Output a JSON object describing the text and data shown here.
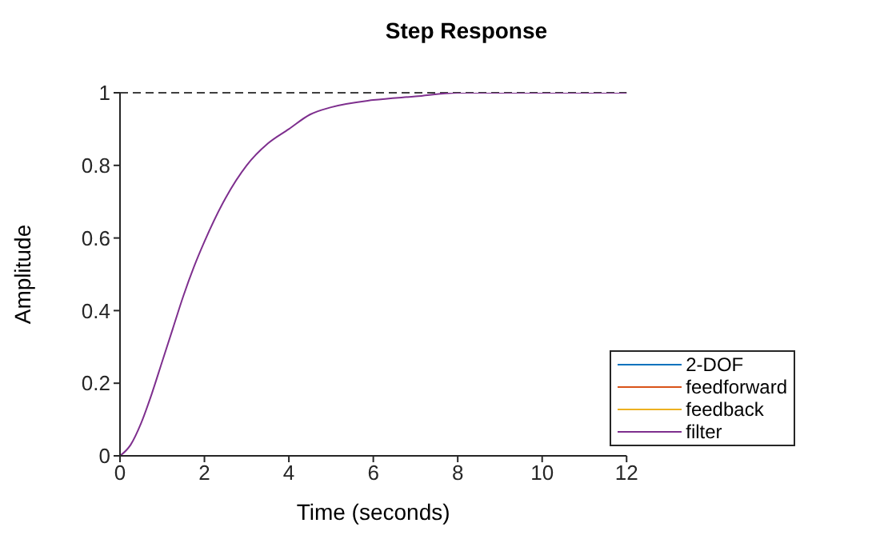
{
  "chart_data": {
    "type": "line",
    "title": "Step Response",
    "xlabel": "Time (seconds)",
    "ylabel": "Amplitude",
    "x": [
      0,
      0.25,
      0.5,
      0.75,
      1,
      1.25,
      1.5,
      1.75,
      2,
      2.5,
      3,
      3.5,
      4,
      4.5,
      5,
      6,
      7,
      8,
      9,
      10,
      12
    ],
    "series": [
      {
        "name": "2-DOF",
        "color": "#0072bd",
        "values": [
          null,
          null,
          null,
          null,
          null,
          null,
          null,
          null,
          null,
          null,
          null,
          null,
          null,
          null,
          null,
          null,
          null,
          null,
          null,
          null,
          null
        ]
      },
      {
        "name": "feedforward",
        "color": "#d95319",
        "values": [
          null,
          null,
          null,
          null,
          null,
          null,
          null,
          null,
          null,
          null,
          null,
          null,
          null,
          null,
          null,
          null,
          null,
          null,
          null,
          null,
          null
        ]
      },
      {
        "name": "feedback",
        "color": "#edb120",
        "values": [
          null,
          null,
          null,
          null,
          null,
          null,
          null,
          null,
          null,
          null,
          null,
          null,
          null,
          null,
          null,
          null,
          null,
          null,
          null,
          null,
          null
        ]
      },
      {
        "name": "filter",
        "color": "#7e2f8e",
        "values": [
          0,
          0.03,
          0.09,
          0.17,
          0.26,
          0.35,
          0.44,
          0.52,
          0.59,
          0.71,
          0.8,
          0.86,
          0.9,
          0.94,
          0.96,
          0.98,
          0.99,
          1,
          1,
          1,
          1
        ]
      }
    ],
    "xlim": [
      0,
      12
    ],
    "xticks": [
      0,
      2,
      4,
      6,
      8,
      10,
      12
    ],
    "ylim": [
      0,
      1
    ],
    "yticks": [
      0,
      0.2,
      0.4,
      0.6,
      0.8,
      1
    ],
    "ref_lines": [
      {
        "axis": "y",
        "value": 1,
        "color": "#000000",
        "line_style": "dashed"
      }
    ],
    "legend": "bottom right",
    "grid": false,
    "marker": "none",
    "line_style": "solid"
  }
}
